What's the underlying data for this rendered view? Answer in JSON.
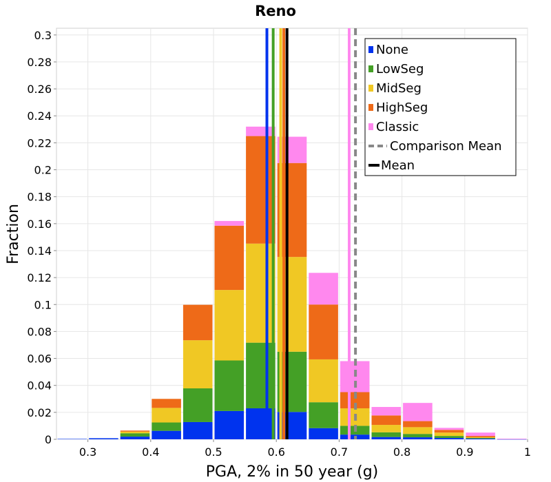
{
  "chart_data": {
    "type": "bar",
    "stacked": true,
    "title": "Reno",
    "xlabel": "PGA, 2% in 50 year (g)",
    "ylabel": "Fraction",
    "xlim": [
      0.25,
      1.0
    ],
    "ylim": [
      0,
      0.305
    ],
    "x_ticks": [
      "0.3",
      "0.4",
      "0.5",
      "0.6",
      "0.7",
      "0.8",
      "0.9",
      "1"
    ],
    "y_ticks": [
      "0",
      "0.02",
      "0.04",
      "0.06",
      "0.08",
      "0.1",
      "0.12",
      "0.14",
      "0.16",
      "0.18",
      "0.2",
      "0.22",
      "0.24",
      "0.26",
      "0.28",
      "0.3"
    ],
    "grid": true,
    "legend_position": "top-right",
    "bin_width": 0.05,
    "bin_centers": [
      0.275,
      0.325,
      0.375,
      0.425,
      0.475,
      0.525,
      0.575,
      0.625,
      0.675,
      0.725,
      0.775,
      0.825,
      0.875,
      0.925,
      0.975
    ],
    "series": [
      {
        "name": "None",
        "color": "#0033ee",
        "values": [
          0.0003,
          0.0008,
          0.002,
          0.0063,
          0.0128,
          0.021,
          0.023,
          0.0203,
          0.0083,
          0.0035,
          0.0017,
          0.0015,
          0.001,
          0.0005,
          0.0001
        ]
      },
      {
        "name": "LowSeg",
        "color": "#44a026",
        "values": [
          0.0,
          0.0,
          0.0025,
          0.0062,
          0.025,
          0.0375,
          0.0487,
          0.0447,
          0.0192,
          0.0065,
          0.0035,
          0.0025,
          0.0015,
          0.0005,
          0.0
        ]
      },
      {
        "name": "MidSeg",
        "color": "#f0c824",
        "values": [
          0.0,
          0.0,
          0.0012,
          0.0108,
          0.0357,
          0.0523,
          0.0735,
          0.0703,
          0.0318,
          0.013,
          0.0055,
          0.005,
          0.0025,
          0.0005,
          0.0
        ]
      },
      {
        "name": "HighSeg",
        "color": "#ee6a18",
        "values": [
          0.0,
          0.0,
          0.0008,
          0.0067,
          0.0263,
          0.0477,
          0.0798,
          0.0697,
          0.0407,
          0.012,
          0.007,
          0.0045,
          0.002,
          0.001,
          0.0
        ]
      },
      {
        "name": "Classic",
        "color": "#ff88ee",
        "values": [
          0.0,
          0.0,
          0.0,
          0.0,
          0.0,
          0.0035,
          0.007,
          0.0195,
          0.0235,
          0.023,
          0.0063,
          0.0135,
          0.0015,
          0.0025,
          0.0004
        ]
      }
    ],
    "mean_lines": [
      {
        "series": "None",
        "x": 0.585,
        "color": "#0033ee"
      },
      {
        "series": "LowSeg",
        "x": 0.595,
        "color": "#44a026"
      },
      {
        "series": "MidSeg",
        "x": 0.607,
        "color": "#f0c824"
      },
      {
        "series": "HighSeg",
        "x": 0.612,
        "color": "#ee6a18"
      },
      {
        "series": "Classic",
        "x": 0.716,
        "color": "#ff88ee"
      }
    ],
    "comparison_mean": {
      "label": "Comparison Mean",
      "x": 0.726,
      "color": "#888888"
    },
    "overall_mean": {
      "label": "Mean",
      "x": 0.617,
      "color": "#000000"
    },
    "legend": [
      "None",
      "LowSeg",
      "MidSeg",
      "HighSeg",
      "Classic",
      "Comparison Mean",
      "Mean"
    ]
  }
}
